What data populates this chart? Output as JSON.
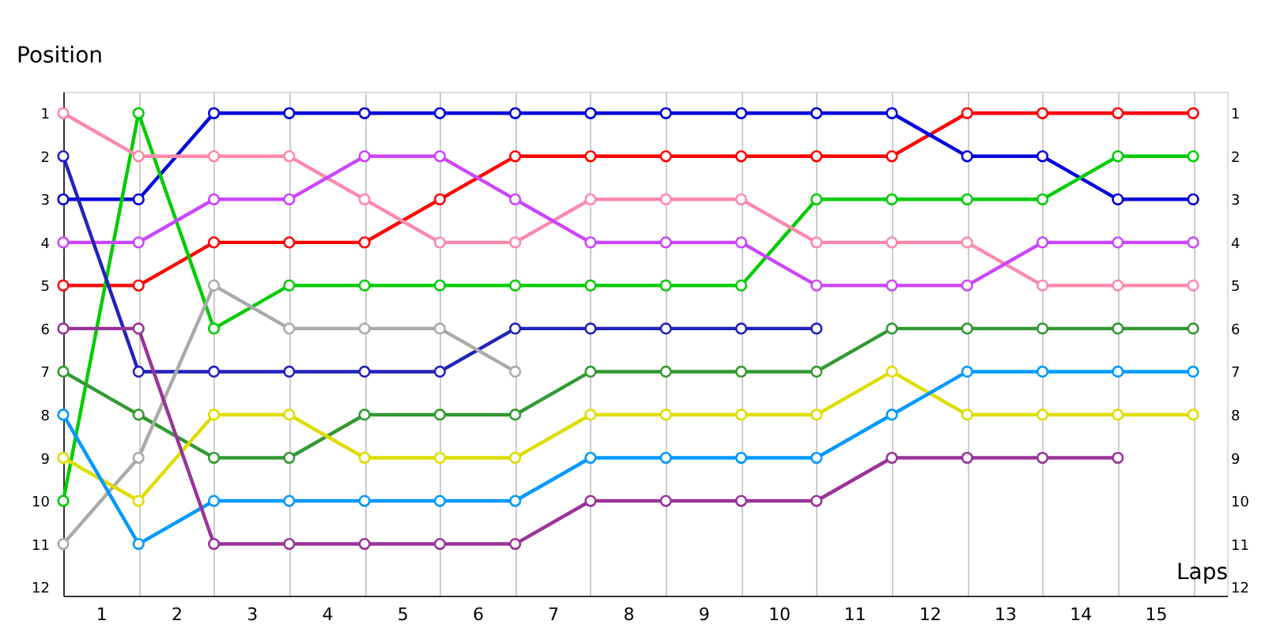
{
  "chart_data": {
    "type": "line",
    "xlabel": "Laps",
    "ylabel": "Position",
    "x": [
      0,
      1,
      2,
      3,
      4,
      5,
      6,
      7,
      8,
      9,
      10,
      11,
      12,
      13,
      14,
      15
    ],
    "series": [
      {
        "color": "#ff0000",
        "values": [
          5,
          5,
          4,
          4,
          4,
          3,
          2,
          2,
          2,
          2,
          2,
          2,
          1,
          1,
          1,
          1
        ]
      },
      {
        "color": "#0000dd",
        "values": [
          3,
          3,
          1,
          1,
          1,
          1,
          1,
          1,
          1,
          1,
          1,
          1,
          2,
          2,
          3,
          3
        ]
      },
      {
        "color": "#00cc00",
        "values": [
          10,
          1,
          6,
          5,
          5,
          5,
          5,
          5,
          5,
          5,
          3,
          3,
          3,
          3,
          2,
          2
        ]
      },
      {
        "color": "#ff88aa",
        "values": [
          1,
          2,
          2,
          2,
          3,
          4,
          4,
          3,
          3,
          3,
          4,
          4,
          4,
          5,
          5,
          5
        ]
      },
      {
        "color": "#cc44ff",
        "values": [
          4,
          4,
          3,
          3,
          2,
          2,
          3,
          4,
          4,
          4,
          5,
          5,
          5,
          4,
          4,
          4
        ]
      },
      {
        "color": "#2222bb",
        "values": [
          2,
          7,
          7,
          7,
          7,
          7,
          6,
          6,
          6,
          6,
          6,
          null,
          null,
          null,
          null,
          null
        ]
      },
      {
        "color": "#339933",
        "values": [
          7,
          8,
          9,
          9,
          8,
          8,
          8,
          7,
          7,
          7,
          7,
          6,
          6,
          6,
          6,
          6
        ]
      },
      {
        "color": "#aaaaaa",
        "values": [
          11,
          9,
          5,
          6,
          6,
          6,
          7,
          null,
          null,
          null,
          null,
          null,
          null,
          null,
          null,
          null
        ]
      },
      {
        "color": "#dddd00",
        "values": [
          9,
          10,
          8,
          8,
          9,
          9,
          9,
          8,
          8,
          8,
          8,
          7,
          8,
          8,
          8,
          8
        ]
      },
      {
        "color": "#0099ff",
        "values": [
          8,
          11,
          10,
          10,
          10,
          10,
          10,
          9,
          9,
          9,
          9,
          8,
          7,
          7,
          7,
          7
        ]
      },
      {
        "color": "#993399",
        "values": [
          6,
          6,
          11,
          11,
          11,
          11,
          11,
          10,
          10,
          10,
          10,
          9,
          9,
          9,
          9,
          null
        ]
      }
    ],
    "xlim": [
      0,
      15.45
    ],
    "xticks": [
      {
        "value": 0,
        "label": null
      },
      {
        "value": 0.5,
        "label": "1"
      },
      {
        "value": 1,
        "label": null
      },
      {
        "value": 1.5,
        "label": "2"
      },
      {
        "value": 2,
        "label": null
      },
      {
        "value": 2.5,
        "label": "3"
      },
      {
        "value": 3,
        "label": null
      },
      {
        "value": 3.5,
        "label": "4"
      },
      {
        "value": 4,
        "label": null
      },
      {
        "value": 4.5,
        "label": "5"
      },
      {
        "value": 5,
        "label": null
      },
      {
        "value": 5.5,
        "label": "6"
      },
      {
        "value": 6,
        "label": null
      },
      {
        "value": 6.5,
        "label": "7"
      },
      {
        "value": 7,
        "label": null
      },
      {
        "value": 7.5,
        "label": "8"
      },
      {
        "value": 8,
        "label": null
      },
      {
        "value": 8.5,
        "label": "9"
      },
      {
        "value": 9,
        "label": null
      },
      {
        "value": 9.5,
        "label": "10"
      },
      {
        "value": 10,
        "label": null
      },
      {
        "value": 10.5,
        "label": "11"
      },
      {
        "value": 11,
        "label": null
      },
      {
        "value": 11.5,
        "label": "12"
      },
      {
        "value": 12,
        "label": null
      },
      {
        "value": 12.5,
        "label": "13"
      },
      {
        "value": 13,
        "label": null
      },
      {
        "value": 13.5,
        "label": "14"
      },
      {
        "value": 14,
        "label": null
      },
      {
        "value": 14.5,
        "label": "15"
      },
      {
        "value": 15,
        "label": null
      }
    ],
    "ylim": [
      12.2,
      0.5
    ],
    "yticks": [
      1,
      2,
      3,
      4,
      5,
      6,
      7,
      8,
      9,
      10,
      11,
      12
    ],
    "y2lim": [
      12.2,
      0.5
    ],
    "y2ticks": [
      1,
      2,
      3,
      4,
      5,
      6,
      7,
      8,
      9,
      10,
      11,
      12
    ],
    "grid": "x",
    "legend": false,
    "marker": "circle",
    "line_style": "solid"
  }
}
